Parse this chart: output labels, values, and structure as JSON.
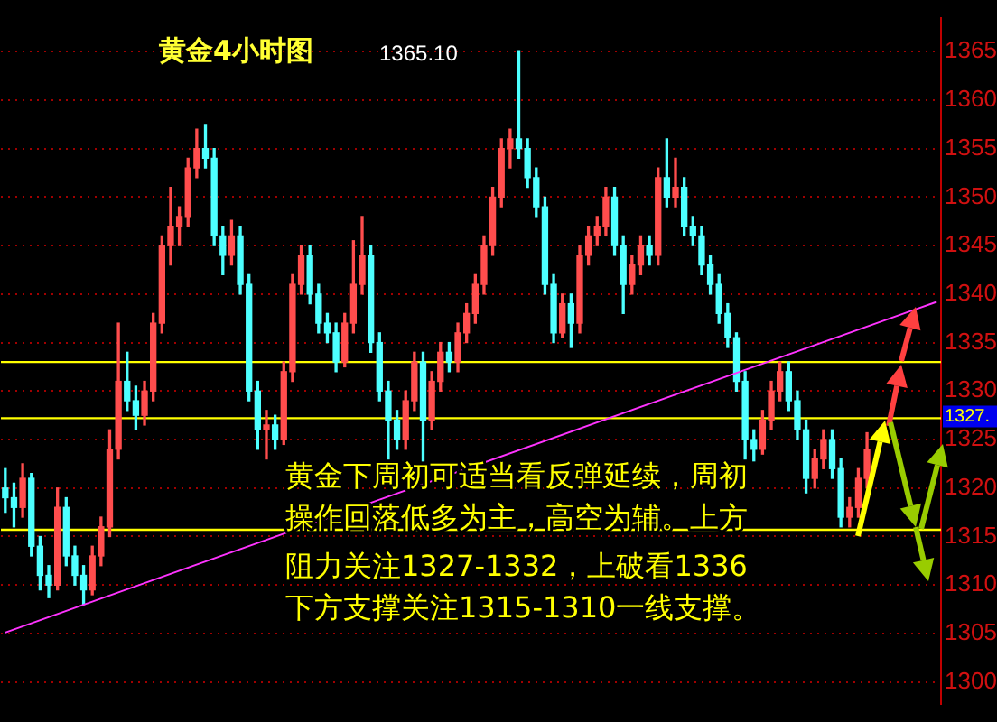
{
  "chart_data": {
    "type": "candlestick",
    "title": "黄金4小时图",
    "categories": [
      null,
      null,
      null,
      null,
      null,
      null,
      null,
      null,
      null,
      null,
      null,
      null,
      null,
      null,
      null,
      null,
      null,
      null,
      null,
      null,
      null,
      null,
      null,
      null,
      null,
      null,
      null,
      null,
      null,
      null,
      null,
      null,
      null,
      null,
      null,
      null,
      null,
      null,
      null,
      null,
      null,
      null,
      null,
      null,
      null,
      null,
      null,
      null,
      null,
      null,
      null,
      null,
      null,
      null,
      null,
      null,
      null,
      null,
      null,
      null,
      null,
      null,
      null,
      null,
      null,
      null,
      null,
      null,
      null,
      null,
      null,
      null,
      null,
      null,
      null,
      null,
      null,
      null,
      null,
      null,
      null,
      null,
      null,
      null,
      null,
      null,
      null,
      null,
      null,
      null,
      null,
      null,
      null,
      null,
      null,
      null,
      null,
      null,
      null,
      null,
      null,
      null,
      null,
      null,
      null,
      null,
      null,
      null
    ],
    "ohlc": [
      [
        1320,
        1322,
        1317.5,
        1319
      ],
      [
        1319,
        1320.5,
        1316,
        1318
      ],
      [
        1318,
        1322.5,
        1317,
        1321
      ],
      [
        1321,
        1321.5,
        1313,
        1314
      ],
      [
        1314,
        1315,
        1309.5,
        1311
      ],
      [
        1311,
        1312,
        1308.7,
        1310
      ],
      [
        1310,
        1320,
        1309.5,
        1318
      ],
      [
        1318,
        1319,
        1312,
        1313
      ],
      [
        1313,
        1314,
        1310,
        1311
      ],
      [
        1311,
        1312,
        1308,
        1309.5
      ],
      [
        1309.5,
        1314,
        1309,
        1313
      ],
      [
        1313,
        1317,
        1312,
        1316
      ],
      [
        1316,
        1326,
        1315,
        1324
      ],
      [
        1324,
        1337,
        1323,
        1331
      ],
      [
        1331,
        1334,
        1328,
        1329
      ],
      [
        1329,
        1330.5,
        1326,
        1327.5
      ],
      [
        1327.5,
        1331,
        1326.5,
        1330
      ],
      [
        1330,
        1338,
        1329,
        1337
      ],
      [
        1337,
        1346,
        1336,
        1345
      ],
      [
        1345,
        1351,
        1343,
        1347
      ],
      [
        1347,
        1349,
        1345,
        1348
      ],
      [
        1348,
        1354,
        1347,
        1353
      ],
      [
        1353,
        1357,
        1352,
        1355
      ],
      [
        1355,
        1357.5,
        1353,
        1354
      ],
      [
        1354,
        1355,
        1345,
        1346
      ],
      [
        1346,
        1347,
        1342,
        1344
      ],
      [
        1344,
        1347.6,
        1343,
        1346
      ],
      [
        1346,
        1347,
        1340,
        1341
      ],
      [
        1341,
        1342,
        1329,
        1330
      ],
      [
        1330,
        1331,
        1324,
        1326
      ],
      [
        1326,
        1328,
        1323,
        1326.5
      ],
      [
        1326.5,
        1327.5,
        1324,
        1325
      ],
      [
        1325,
        1333,
        1324.5,
        1332
      ],
      [
        1332,
        1342,
        1331,
        1341
      ],
      [
        1341,
        1345,
        1340,
        1344
      ],
      [
        1344,
        1345,
        1339,
        1340
      ],
      [
        1340,
        1341,
        1336,
        1337
      ],
      [
        1337,
        1338,
        1335,
        1336
      ],
      [
        1336,
        1337,
        1332,
        1333
      ],
      [
        1333,
        1338,
        1332.5,
        1337
      ],
      [
        1337,
        1345.5,
        1336,
        1341
      ],
      [
        1341,
        1348,
        1340,
        1344
      ],
      [
        1344,
        1345,
        1334,
        1335
      ],
      [
        1335,
        1336,
        1329,
        1330
      ],
      [
        1330,
        1331,
        1323,
        1327
      ],
      [
        1327,
        1328,
        1324,
        1325
      ],
      [
        1325,
        1330,
        1324,
        1329
      ],
      [
        1329,
        1334,
        1328,
        1333
      ],
      [
        1333,
        1334,
        1322.8,
        1327
      ],
      [
        1327,
        1332,
        1326,
        1331
      ],
      [
        1331,
        1335,
        1330,
        1334
      ],
      [
        1334,
        1335,
        1332,
        1333
      ],
      [
        1333,
        1337,
        1332,
        1336
      ],
      [
        1336,
        1339,
        1335,
        1338
      ],
      [
        1338,
        1342,
        1337,
        1341
      ],
      [
        1341,
        1346,
        1340,
        1345
      ],
      [
        1345,
        1351,
        1344,
        1350
      ],
      [
        1350,
        1356,
        1349,
        1355
      ],
      [
        1355,
        1357,
        1353,
        1356
      ],
      [
        1356,
        1365.1,
        1354,
        1355
      ],
      [
        1355,
        1356,
        1351,
        1352
      ],
      [
        1352,
        1353,
        1348,
        1349
      ],
      [
        1349,
        1350,
        1340,
        1341
      ],
      [
        1341,
        1342,
        1335,
        1336
      ],
      [
        1336,
        1340,
        1335.5,
        1339
      ],
      [
        1339,
        1340,
        1334.5,
        1337
      ],
      [
        1337,
        1345,
        1336,
        1344
      ],
      [
        1344,
        1347,
        1343,
        1346
      ],
      [
        1346,
        1348,
        1345,
        1347
      ],
      [
        1347,
        1351,
        1346,
        1350
      ],
      [
        1350,
        1351,
        1344,
        1345
      ],
      [
        1345,
        1346,
        1338,
        1341
      ],
      [
        1341,
        1344,
        1340,
        1343
      ],
      [
        1343,
        1346,
        1342,
        1345
      ],
      [
        1345,
        1346,
        1343,
        1344
      ],
      [
        1344,
        1353,
        1343,
        1352
      ],
      [
        1352,
        1356,
        1349,
        1350
      ],
      [
        1350,
        1354,
        1349,
        1351
      ],
      [
        1351,
        1352,
        1346,
        1347
      ],
      [
        1347,
        1348,
        1345,
        1346
      ],
      [
        1346,
        1347,
        1342,
        1343
      ],
      [
        1343,
        1344,
        1340,
        1341
      ],
      [
        1341,
        1342,
        1337,
        1338
      ],
      [
        1338,
        1339,
        1334.5,
        1335.5
      ],
      [
        1335.5,
        1336,
        1330,
        1331
      ],
      [
        1331,
        1332,
        1323,
        1325
      ],
      [
        1325,
        1326,
        1322.8,
        1324
      ],
      [
        1324,
        1328,
        1323.5,
        1327
      ],
      [
        1327,
        1331,
        1326,
        1330
      ],
      [
        1330,
        1333,
        1329,
        1332
      ],
      [
        1332,
        1333,
        1328,
        1329
      ],
      [
        1329,
        1330,
        1325,
        1326
      ],
      [
        1326,
        1327,
        1319.5,
        1321
      ],
      [
        1321,
        1324,
        1320,
        1323
      ],
      [
        1323,
        1326,
        1322,
        1325
      ],
      [
        1325,
        1326,
        1321,
        1322
      ],
      [
        1322,
        1323,
        1316,
        1317
      ],
      [
        1317,
        1319,
        1316,
        1318
      ],
      [
        1318,
        1322,
        1317,
        1321
      ],
      [
        1321,
        1325.7,
        1320,
        1324
      ],
      null,
      null,
      null,
      null,
      null,
      null,
      null,
      null
    ],
    "colors": [
      "#4dffff",
      "#4dffff",
      "#ff4d4d",
      "#4dffff",
      "#4dffff",
      "#4dffff",
      "#ff4d4d",
      "#4dffff",
      "#4dffff",
      "#4dffff",
      "#ff4d4d",
      "#ff4d4d",
      "#ff4d4d",
      "#ff4d4d",
      "#4dffff",
      "#4dffff",
      "#ff4d4d",
      "#ff4d4d",
      "#ff4d4d",
      "#ff4d4d",
      "#ff4d4d",
      "#ff4d4d",
      "#ff4d4d",
      "#4dffff",
      "#4dffff",
      "#4dffff",
      "#ff4d4d",
      "#4dffff",
      "#4dffff",
      "#4dffff",
      "#ff4d4d",
      "#4dffff",
      "#ff4d4d",
      "#ff4d4d",
      "#ff4d4d",
      "#4dffff",
      "#4dffff",
      "#4dffff",
      "#4dffff",
      "#ff4d4d",
      "#ff4d4d",
      "#ff4d4d",
      "#4dffff",
      "#4dffff",
      "#4dffff",
      "#4dffff",
      "#ff4d4d",
      "#ff4d4d",
      "#4dffff",
      "#ff4d4d",
      "#ff4d4d",
      "#4dffff",
      "#ff4d4d",
      "#ff4d4d",
      "#ff4d4d",
      "#ff4d4d",
      "#ff4d4d",
      "#ff4d4d",
      "#ff4d4d",
      "#4dffff",
      "#4dffff",
      "#4dffff",
      "#4dffff",
      "#4dffff",
      "#ff4d4d",
      "#4dffff",
      "#ff4d4d",
      "#ff4d4d",
      "#ff4d4d",
      "#ff4d4d",
      "#4dffff",
      "#4dffff",
      "#ff4d4d",
      "#ff4d4d",
      "#4dffff",
      "#ff4d4d",
      "#4dffff",
      "#ff4d4d",
      "#4dffff",
      "#4dffff",
      "#4dffff",
      "#4dffff",
      "#4dffff",
      "#4dffff",
      "#4dffff",
      "#4dffff",
      "#4dffff",
      "#ff4d4d",
      "#ff4d4d",
      "#ff4d4d",
      "#4dffff",
      "#4dffff",
      "#4dffff",
      "#ff4d4d",
      "#ff4d4d",
      "#4dffff",
      "#4dffff",
      "#ff4d4d",
      "#ff4d4d",
      "#ff4d4d",
      null,
      null,
      null,
      null,
      null,
      null,
      null,
      null
    ],
    "series": [
      {
        "type": "line",
        "color": "#ff33ff",
        "values": [
          1305.1,
          null,
          null,
          null,
          null,
          null,
          null,
          null,
          null,
          null,
          null,
          null,
          null,
          null,
          null,
          null,
          null,
          null,
          null,
          null,
          null,
          null,
          null,
          null,
          null,
          null,
          null,
          null,
          null,
          null,
          null,
          null,
          null,
          null,
          null,
          null,
          null,
          null,
          null,
          null,
          null,
          null,
          null,
          null,
          null,
          null,
          null,
          null,
          null,
          null,
          null,
          null,
          null,
          null,
          null,
          null,
          null,
          null,
          null,
          null,
          null,
          null,
          null,
          null,
          null,
          null,
          null,
          null,
          null,
          null,
          null,
          null,
          null,
          null,
          null,
          null,
          null,
          null,
          null,
          null,
          null,
          null,
          null,
          null,
          null,
          null,
          null,
          null,
          null,
          null,
          null,
          null,
          null,
          null,
          null,
          null,
          null,
          null,
          null,
          null,
          null,
          null,
          null,
          null,
          null,
          null,
          null,
          1339.2
        ]
      }
    ],
    "ylim": [
      1297.7,
      1368.5
    ],
    "yticks": [
      1300,
      1305,
      1310,
      1315,
      1320,
      1325,
      1330,
      1335,
      1340,
      1345,
      1350,
      1355,
      1360,
      1365
    ],
    "grid": "y",
    "legend": false,
    "tick_labels": "y",
    "ref_lines": [
      {
        "axis": "y",
        "value": 1315.7,
        "color": "#ffff00"
      },
      {
        "axis": "y",
        "value": 1333,
        "color": "#ffff00"
      },
      {
        "axis": "y",
        "value": 1327.2,
        "color": "#ffff00",
        "label": "1327."
      }
    ],
    "annotations": [
      "1365.10",
      "黄金下周初可适当看反弹延续，周初",
      "操作回落低多为主，高空为辅。上方",
      "阻力关注1327-1332，上破看1336",
      "下方支撑关注1315-1310一线支撑。"
    ]
  }
}
